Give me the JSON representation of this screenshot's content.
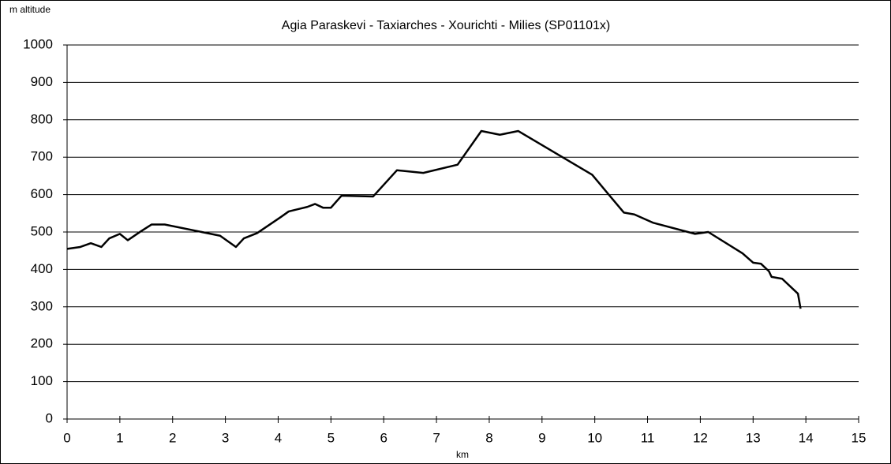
{
  "chart_data": {
    "type": "line",
    "title": "Agia Paraskevi - Taxiarches - Xourichti - Milies (SP01101x)",
    "y_label": "m altitude",
    "x_label": "km",
    "xlim": [
      0,
      15
    ],
    "xticks": [
      0,
      1,
      2,
      3,
      4,
      5,
      6,
      7,
      8,
      9,
      10,
      11,
      12,
      13,
      14,
      15
    ],
    "ylim": [
      0,
      1000
    ],
    "yticks": [
      0,
      100,
      200,
      300,
      400,
      500,
      600,
      700,
      800,
      900,
      1000
    ],
    "grid": true,
    "series": [
      {
        "name": "altitude",
        "color": "#000000",
        "x": [
          0,
          0.25,
          0.45,
          0.65,
          0.8,
          1.0,
          1.15,
          1.4,
          1.6,
          1.85,
          2.9,
          3.2,
          3.35,
          3.6,
          4.05,
          4.2,
          4.55,
          4.7,
          4.85,
          5.0,
          5.2,
          5.8,
          6.25,
          6.75,
          7.4,
          7.85,
          8.2,
          8.55,
          9.95,
          10.55,
          10.75,
          11.1,
          11.9,
          12.15,
          12.8,
          13.0,
          13.15,
          13.3,
          13.35,
          13.55,
          13.85,
          13.9
        ],
        "values": [
          455,
          460,
          470,
          460,
          483,
          495,
          478,
          502,
          520,
          520,
          490,
          460,
          483,
          497,
          540,
          555,
          567,
          575,
          565,
          565,
          597,
          595,
          665,
          658,
          680,
          770,
          760,
          770,
          653,
          552,
          547,
          525,
          495,
          500,
          443,
          418,
          415,
          395,
          380,
          375,
          335,
          295
        ]
      }
    ]
  }
}
